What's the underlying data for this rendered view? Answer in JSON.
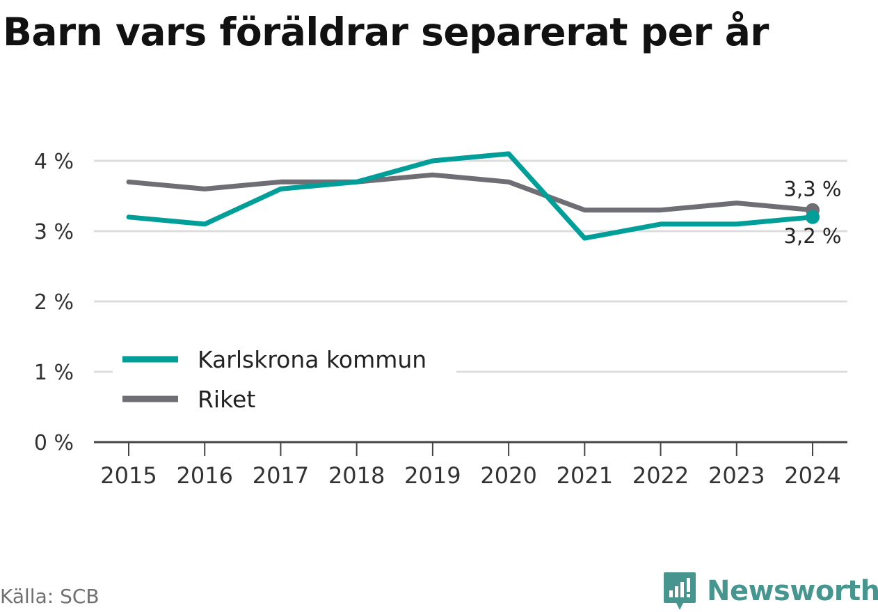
{
  "header": {
    "title": "Barn vars föräldrar separerat per år"
  },
  "footer": {
    "source": "Källa: SCB",
    "brand": "Newsworthy"
  },
  "colors": {
    "karlskrona": "#009e99",
    "riket": "#6f6e74",
    "grid": "#dddddd",
    "axis": "#444444",
    "brand": "#46958f"
  },
  "chart_data": {
    "type": "line",
    "title": "Barn vars föräldrar separerat per år",
    "x": [
      "2015",
      "2016",
      "2017",
      "2018",
      "2019",
      "2020",
      "2021",
      "2022",
      "2023",
      "2024"
    ],
    "series": [
      {
        "name": "Karlskrona kommun",
        "values": [
          3.2,
          3.1,
          3.6,
          3.7,
          4.0,
          4.1,
          2.9,
          3.1,
          3.1,
          3.2
        ],
        "color": "#009e99",
        "end_label": "3,2 %"
      },
      {
        "name": "Riket",
        "values": [
          3.7,
          3.6,
          3.7,
          3.7,
          3.8,
          3.7,
          3.3,
          3.3,
          3.4,
          3.3
        ],
        "color": "#6f6e74",
        "end_label": "3,3 %"
      }
    ],
    "yticks": [
      0,
      1,
      2,
      3,
      4
    ],
    "ytick_labels": [
      "0 %",
      "1 %",
      "2 %",
      "3 %",
      "4 %"
    ],
    "ylim": [
      0,
      4.2
    ],
    "grid": true,
    "legend_position": "bottom-left"
  }
}
